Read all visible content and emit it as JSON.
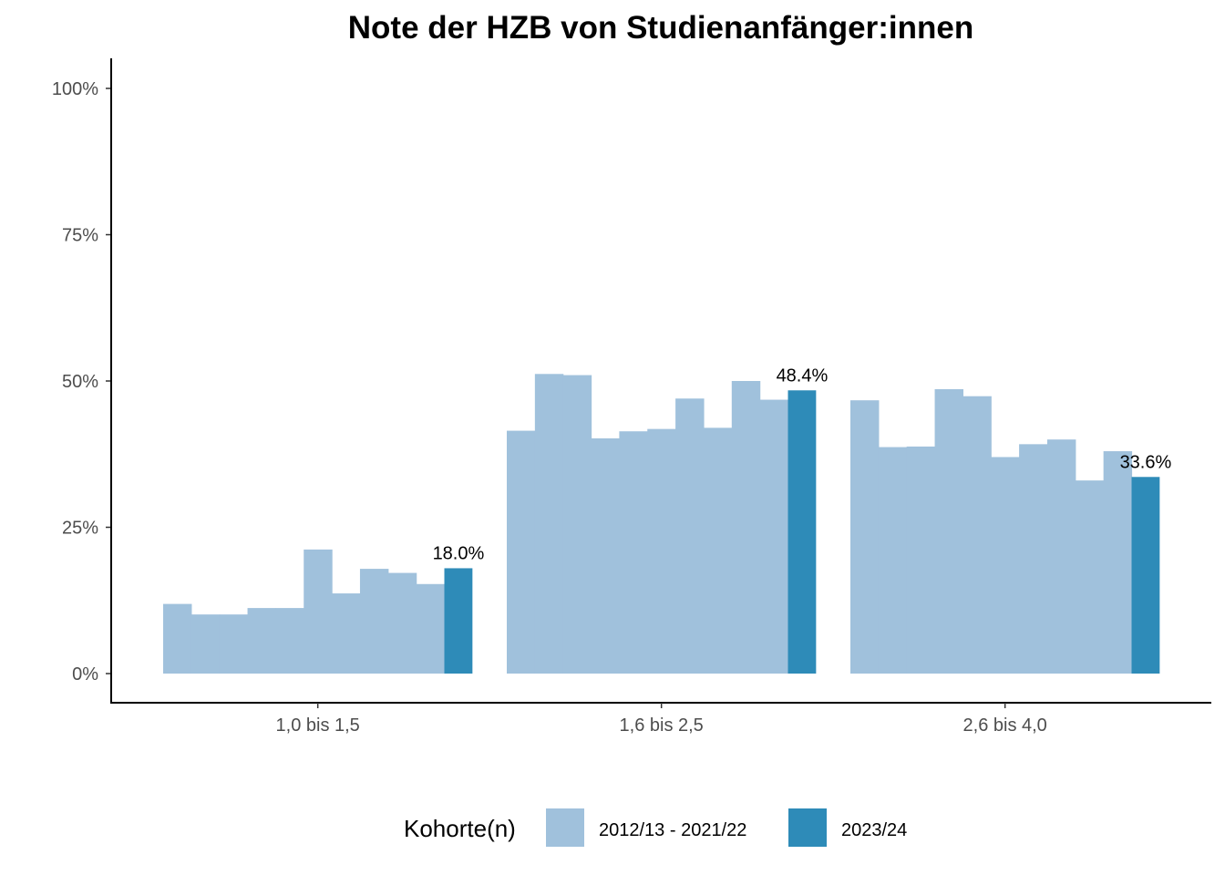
{
  "chart_data": {
    "type": "bar",
    "title": "Note der HZB von Studienanfänger:innen",
    "xlabel": "",
    "ylabel": "",
    "ylim": [
      0,
      1.05
    ],
    "y_ticks": [
      0,
      0.25,
      0.5,
      0.75,
      1.0
    ],
    "y_tick_labels": [
      "0%",
      "25%",
      "50%",
      "75%",
      "100%"
    ],
    "grid": false,
    "categories": [
      "1,0 bis 1,5",
      "1,6 bis 2,5",
      "2,6 bis 4,0"
    ],
    "series": [
      {
        "name": "2012/13 - 2021/22",
        "color": "#a0c1dc",
        "values": [
          [
            0.119,
            0.101,
            0.101,
            0.112,
            0.112,
            0.212,
            0.137,
            0.179,
            0.172,
            0.153
          ],
          [
            0.415,
            0.512,
            0.51,
            0.402,
            0.414,
            0.418,
            0.47,
            0.42,
            0.5,
            0.468
          ],
          [
            0.467,
            0.387,
            0.388,
            0.486,
            0.474,
            0.37,
            0.392,
            0.4,
            0.33,
            0.38
          ]
        ]
      },
      {
        "name": "2023/24",
        "color": "#2e8bb8",
        "values": [
          0.18,
          0.484,
          0.336
        ],
        "data_labels": [
          "18.0%",
          "48.4%",
          "33.6%"
        ]
      }
    ],
    "legend": {
      "position": "bottom",
      "title": "Kohorte(n)",
      "entries": [
        "2012/13 - 2021/22",
        "2023/24"
      ]
    }
  }
}
